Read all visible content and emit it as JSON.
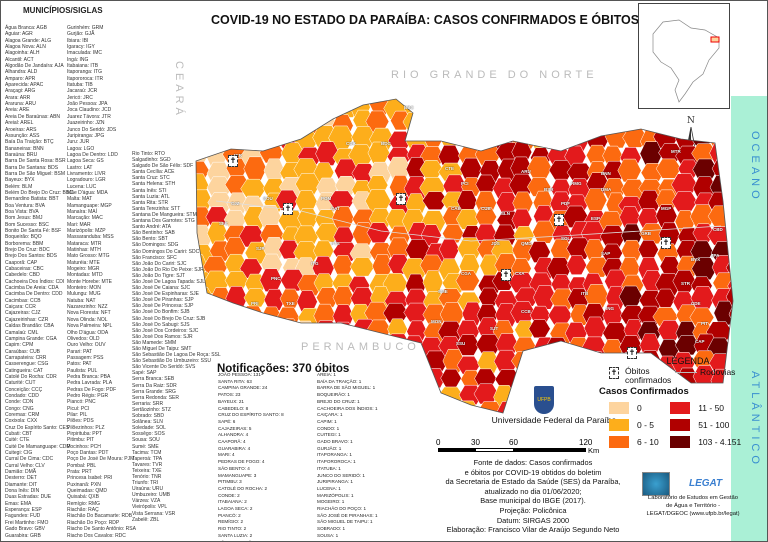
{
  "title": "COVID-19 NO ESTADO DA PARAÍBA: CASOS CONFIRMADOS E  ÓBITOS (01/06/2020)",
  "municipalities": {
    "title": "MUNICÍPIOS/SIGLAS",
    "columns": [
      [
        "Água Branca: AGB",
        "Aguiar: AGR",
        "Alagoa Grande: ALG",
        "Alagoa Nova: ALN",
        "Alagoinha: ALH",
        "Alcantil: ACT",
        "Algodão De Jandaíra: AJA",
        "Alhandra: ALD",
        "Amparo: APR",
        "Aparecida: APAC",
        "Araçagi: ARG",
        "Arara: ARR",
        "Araruna: ARU",
        "Areia: ARE",
        "Areia De Baraúnas: ABN",
        "Areial: AREL",
        "Aroeiras: ARS",
        "Assunção: ASS",
        "Baía Da Traição: BTÇ",
        "Bananeiras: BNN",
        "Baraúna: BRU",
        "Barra De Santa Rosa: BSR",
        "Barra De Santana: BDS",
        "Barra De São Miguel: BSM",
        "Bayeux: BYX",
        "Belém: BLM",
        "Belém Do Brejo Do Cruz: BBC",
        "Bernardino Batista: BBT",
        "Boa Ventura: BVA",
        "Boa Vista: BVA",
        "Bom Jesus: BMJ",
        "Bom Sucesso: BSC",
        "Bonito De Santa Fé: BSF",
        "Boqueirão: BQO",
        "Borborema: BBM",
        "Brejo Do Cruz: BDC",
        "Brejo Dos Santos: BDS",
        "Caaporã: CAP",
        "Cabaceiras: CBC",
        "Cabedelo: CBD",
        "Cachoeira Dos Índios: CDI",
        "Cacimba De Areia: CDA",
        "Cacimba De Dentro: CDD",
        "Cacimbas: CCB",
        "Caiçara: CCR",
        "Cajazeiras: CJZ",
        "Cajazeirinhas: CZR",
        "Caldas Brandão: CBA",
        "Camalaú: CML",
        "Campina Grande: CGA",
        "Capim: CPM",
        "Caraúbas: CUB",
        "Carrapateira: CRR",
        "Casserengue: CSG",
        "Catingueira: CAT",
        "Catolé Do Rocha: CDR",
        "Caturité: CUT",
        "Conceição: CCÇ",
        "Condado: CDD",
        "Conde: CDN",
        "Congo: CNG",
        "Coremas: CRM",
        "Coxixola: CXX",
        "Cruz Do Espírito Santo: CES",
        "Cubati: CBT",
        "Cuité: CTE",
        "Cuité De Mamanguape: CDM",
        "Cuitegi: CIG",
        "Curral De Cima: CDC",
        "Curral Velho: CLV",
        "Damião: DMÃ",
        "Desterro: DET",
        "Diamante: DIT",
        "Dona Inês: DIN",
        "Duas Estradas: DUE",
        "Emas: EMA",
        "Esperança: ESP",
        "Fagundes: FUD",
        "Frei Martinho: FMO",
        "Gado Bravo: GBV",
        "Guarabira: GRB"
      ],
      [
        "Gurinhém: GRM",
        "Gurjão: GJÃ",
        "Ibiara: IBI",
        "Igaracy: IGY",
        "Imaculada: IMC",
        "Ingá: ING",
        "Itabaiana: ITB",
        "Itaporanga: ITG",
        "Itapororoca: ITR",
        "Itatuba: TIB",
        "Jacaraú: JCR",
        "Jericó: JRC",
        "João Pessoa: JPA",
        "Joca Claudino: JCD",
        "Juarez Távora: JTR",
        "Juazeirinho: JZN",
        "Junco Do Seridó: JDS",
        "Juripiranga: JPG",
        "Juru: JUR",
        "Lagoa: LGO",
        "Lagoa De Dentro: LDD",
        "Lagoa Seca: GS",
        "Lastro: LAT",
        "Livramento: LIVR",
        "Logradouro: LGR",
        "Lucena: LUC",
        "Mãe D'água: MDA",
        "Malta: MAT",
        "Mamanguape: MGP",
        "Manaíra: MAÍ",
        "Marcação: MAC",
        "Mari: MAR",
        "Marizópolis: MZP",
        "Massaranduba: MSS",
        "Mataraca: MTR",
        "Matinhas: MTH",
        "Mato Grosso: MTG",
        "Maturéia: MTE",
        "Mogeiro: MGR",
        "Montadas: MTD",
        "Monte Horebe: MTE",
        "Monteiro: MON",
        "Mulungu: MUG",
        "Natuba: NAT",
        "Nazarezinho: NZZ",
        "Nova Floresta: NFT",
        "Nova Olinda: NOL",
        "Nova Palmeira: NPL",
        "Olho D'água: ODA",
        "Olivedos: OLD",
        "Ouro Velho: OUV",
        "Parari: PAT",
        "Passagem: PSS",
        "Patos: PAT",
        "Paulista: PUL",
        "Pedra Branca: PBA",
        "Pedra Lavrada: PLA",
        "Pedras De Fogo: PDF",
        "Pedro Régis: PGR",
        "Piancó: PNC",
        "Picuí: PCI",
        "Pilar: PIL",
        "Pilões: PDS",
        "Pilõezinhos: PLZ",
        "Pirpirituba: PPT",
        "Pitimbu: PIT",
        "Pocinhos: PCH",
        "Poço Dantas: PDT",
        "Poço De José De Moura: PJM",
        "Pombal: PBL",
        "Prata: PRT",
        "Princesa Isabel: PRI",
        "Puxinanã: PXN",
        "Queimadas: QMD",
        "Quixabá: QXB",
        "Remígio: RMG",
        "Riachão: RAÇ",
        "Riachão Do Bacamarte: RDB",
        "Riachão Do Poço: RDP",
        "Riacho De Santo Antônio: RSA",
        "Riacho Dos Cavalos: RDC"
      ],
      [
        "Rio Tinto: RTO",
        "Salgadinho: SGD",
        "Salgado De São Félix: SDF",
        "Santa Cecília: ACE",
        "Santa Cruz: STC",
        "Santa Helena: STH",
        "Santa Inês: STI",
        "Santa Luzia: ATL",
        "Santa Rita: STR",
        "Santa Terezinha: STT",
        "Santana De Mangueira: STM",
        "Santana Dos Garrotes: STG",
        "Santo André: ATA",
        "São Bentinho: SAB",
        "São Bento: SBT",
        "São Domingos: SDG",
        "São Domingos Do Cariri: SDC",
        "São Francisco: SFC",
        "São João Do Cariri: SJC",
        "São João Do Rio Do Peixe: SJR",
        "São João Do Tigre: SJT",
        "São José De Lagoa Tapada: SJL",
        "São José De Caiana: SJC",
        "São José De Espinharas: SJE",
        "São José De Piranhas: SJP",
        "São José De Princesa: SJP",
        "São José Do Bonfim: SJB",
        "São José Do Brejo Do Cruz: SJB",
        "São José Do Sabugi: SJS",
        "São José Dos Cordeiros: SJC",
        "São José Dos Ramos: SJR",
        "São Mamede: SMM",
        "São Miguel De Taipu: SMT",
        "São Sebastião De Lagoa De Roça: SSL",
        "São Sebastião Do Umbuzeiro: SSU",
        "São Vicente Do Seridó: SVS",
        "Sapé: SAP",
        "Serra Branca: SEB",
        "Serra Da Raiz: SDR",
        "Serra Grande: SRG",
        "Serra Redonda: SER",
        "Serraria: SRR",
        "Sertãozinho: STZ",
        "Sobrado: SBD",
        "Solânea: SLN",
        "Soledade: SOL",
        "Sossêgo: SOS",
        "Sousa: SOU",
        "Sumé: SME",
        "Tacima: TCM",
        "Taperoá: TPA",
        "Tavares: TVR",
        "Teixeira: TXE",
        "Tenório: TNR",
        "Triunfo: TRI",
        "Uiraúna: URU",
        "Umbuzeiro: UMB",
        "Várzea: VZA",
        "Vieirópolis: VPL",
        "Vista Serrana: VSR",
        "Zabelê: ZBL"
      ]
    ]
  },
  "map": {
    "states": {
      "north": "RIO GRANDE DO NORTE",
      "west": "CEARÁ",
      "south": "PERNAMBUCO",
      "ocean1": "OCEANO",
      "ocean2": "ATLÂNTICO"
    },
    "north_arrow": "N",
    "labels": [
      "BBC",
      "JCR",
      "BSR",
      "PCI",
      "CTE",
      "ARU",
      "MTR",
      "DMA",
      "JPA",
      "CBD",
      "BYX",
      "STR",
      "CDE",
      "PIT",
      "CAP",
      "GRB",
      "MGP",
      "SAP",
      "ITB",
      "CGA",
      "PTS",
      "SSU",
      "SJT",
      "MON",
      "SME",
      "CXA",
      "CCB",
      "PNC",
      "ITG",
      "CJZ",
      "SOU",
      "POM",
      "CDR",
      "BDC",
      "TXE",
      "PRI",
      "SFC",
      "CAT",
      "SOL",
      "JDS",
      "QMD",
      "ING",
      "PDF",
      "ESP",
      "RMG",
      "BNN",
      "SLN",
      "CUB",
      "CAB",
      "SJP"
    ]
  },
  "notifications": {
    "title": "Notificações: 370 óbitos",
    "columns": [
      [
        "João Pessoa: 131",
        "Santa Rita: 63",
        "Campina Grande: 24",
        "Patos: 23",
        "Bayeux: 21",
        "Cabedelo: 8",
        "Cruz do Espírito Santo: 8",
        "Sapé: 6",
        "Cajazeiras: 5",
        "Alhandra: 4",
        "Caaporã: 4",
        "Guarabira: 4",
        "Mari: 4",
        "Pedras de Fogo: 4",
        "São Bento: 4",
        "Mamanguape: 3",
        "Pitimbu: 3",
        "Catolé do Rocha: 2",
        "Conde: 2",
        "Itabaiana: 2",
        "Lagoa Seca: 2",
        "Piancó: 2",
        "Remígio: 2",
        "Rio Tinto: 2",
        "Santa Luzia: 2",
        "São Sebastião de Lagoa de Roça: 2",
        "Serraria: 2",
        "Alagoa Grande: 1",
        "Alagoa Nova: 1"
      ],
      [
        "Areia: 1",
        "Baía da Traição: 1",
        "Barra de São Miguel: 1",
        "Boqueirão: 1",
        "Brejo do Cruz: 1",
        "Cachoeira dos Índios: 1",
        "Caiçara: 1",
        "Capim: 1",
        "Condo: 1",
        "Cuitegi: 1",
        "Gado Bravo: 1",
        "Gurjão: 1",
        "Itaporanga: 1",
        "Itapororoca: 1",
        "Itatuba: 1",
        "Junco do Seridó: 1",
        "Juripiranga: 1",
        "Lucena: 1",
        "Marizópolis: 1",
        "Mogeiro: 1",
        "Riachão do Poço: 1",
        "São José de Piranhas: 1",
        "São Miguel de Taipu: 1",
        "Sobrado: 1",
        "Sousa: 1",
        "Tacima: 1",
        "Taperoá: 1",
        "Urauna: 1",
        "Umbuzeiro: 1"
      ]
    ]
  },
  "legend": {
    "title": "LEGENDA",
    "deaths_label": "Óbitos confirmados",
    "roads_label": "Rodovias",
    "cases_title": "Casos Confirmados",
    "classes": [
      {
        "label": "0",
        "color": "#fdd49e"
      },
      {
        "label": "11 - 50",
        "color": "#e31a1c"
      },
      {
        "label": "0 - 5",
        "color": "#fdae1b"
      },
      {
        "label": "51 - 100",
        "color": "#b00000"
      },
      {
        "label": "6 - 10",
        "color": "#fc6a10"
      },
      {
        "label": "103 - 4.151",
        "color": "#6b0000"
      }
    ]
  },
  "university": {
    "name": "Universidade Federal da Paraíba",
    "seal_text": "UFPB"
  },
  "scale": {
    "ticks": [
      "0",
      "30",
      "60",
      "120"
    ],
    "unit": "Km"
  },
  "source": [
    "Fonte de dados: Casos confirmados",
    "e óbitos por COVID-19 obtidos do boletim",
    "da Secretaria de Estado da Saúde (SES) da Paraíba,",
    "atualizado no dia 01/06/2020;",
    "Base municipal do IBGE (2017).",
    "Projeção: Policônica",
    "Datum: SIRGAS 2000",
    "Elaboração: Francisco Vilar de Araújo Segundo Neto"
  ],
  "legat": {
    "logo_text": "LEGAT",
    "caption": [
      "Laboratório de Estudos em Gestão",
      "de Água e Território -",
      "LEGAT/DGEOC (www.ufpb.br/legat)"
    ]
  }
}
